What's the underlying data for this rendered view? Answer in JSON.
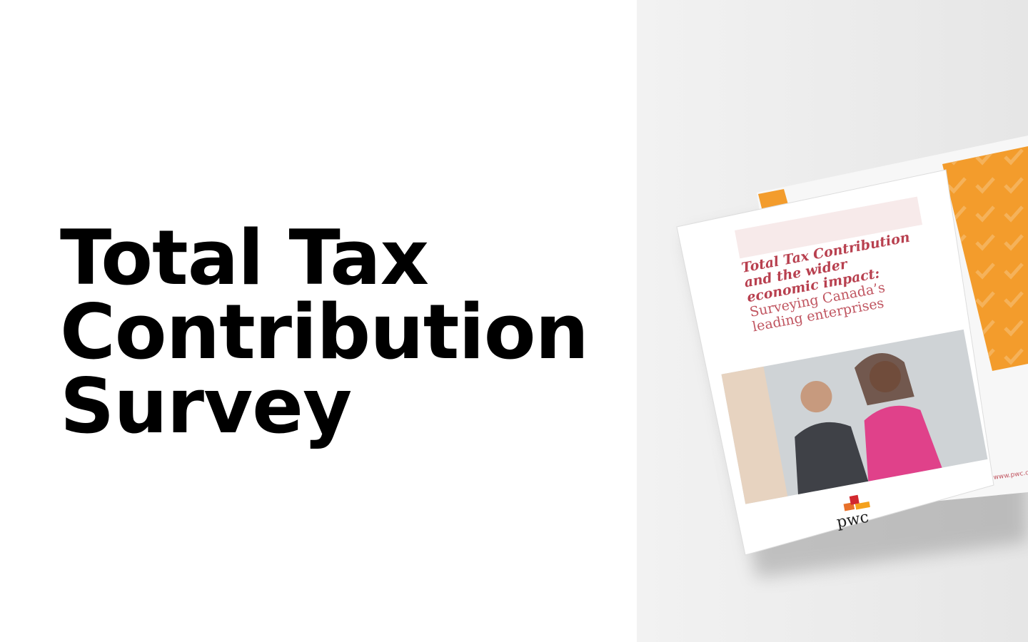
{
  "hero": {
    "title_lines": [
      "Total Tax",
      "Contribution",
      "Survey"
    ]
  },
  "brochure": {
    "cover_title_lines": [
      "Total Tax Contribution",
      "and the wider",
      "economic impact:"
    ],
    "cover_subtitle_lines": [
      "Surveying Canada’s",
      "leading enterprises"
    ],
    "logo": "pwc",
    "url": "www.pwc.co"
  }
}
